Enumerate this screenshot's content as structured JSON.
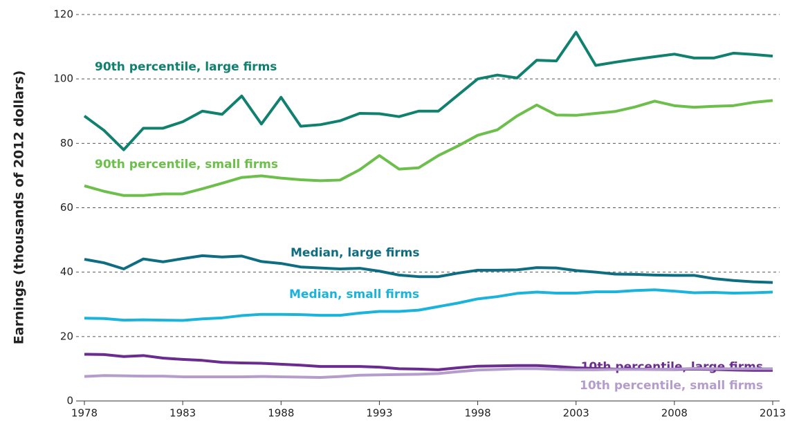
{
  "chart_data": {
    "type": "line",
    "ylabel": "Earnings (thousands of 2012 dollars)",
    "x": [
      1978,
      1979,
      1980,
      1981,
      1982,
      1983,
      1984,
      1985,
      1986,
      1987,
      1988,
      1989,
      1990,
      1991,
      1992,
      1993,
      1994,
      1995,
      1996,
      1997,
      1998,
      1999,
      2000,
      2001,
      2002,
      2003,
      2004,
      2005,
      2006,
      2007,
      2008,
      2009,
      2010,
      2011,
      2012,
      2013
    ],
    "xlim": [
      1978,
      2013
    ],
    "xticks": [
      1978,
      1983,
      1988,
      1993,
      1998,
      2003,
      2008,
      2013
    ],
    "ylim": [
      0,
      120
    ],
    "yticks": [
      0,
      20,
      40,
      60,
      80,
      100,
      120
    ],
    "grid": true,
    "series": [
      {
        "name": "90th percentile, large firms",
        "color": "#10806f",
        "values": [
          88.5,
          84,
          78,
          84.7,
          84.7,
          86.7,
          90,
          89,
          94.7,
          86,
          94.3,
          85.3,
          85.8,
          87,
          89.3,
          89.2,
          88.3,
          90,
          90,
          95,
          100,
          101.2,
          100.3,
          105.8,
          105.6,
          114.5,
          104.2,
          105.2,
          106.1,
          106.9,
          107.7,
          106.5,
          106.5,
          108,
          107.6,
          107.1
        ]
      },
      {
        "name": "90th percentile, small firms",
        "color": "#6cbf4a",
        "values": [
          66.8,
          65.1,
          63.8,
          63.8,
          64.3,
          64.3,
          65.9,
          67.6,
          69.4,
          69.9,
          69.2,
          68.7,
          68.4,
          68.6,
          71.8,
          76.2,
          72,
          72.4,
          76.2,
          79.2,
          82.5,
          84.2,
          88.5,
          91.9,
          88.8,
          88.7,
          89.3,
          89.9,
          91.3,
          93.1,
          91.7,
          91.2,
          91.5,
          91.7,
          92.7,
          93.3
        ]
      },
      {
        "name": "Median, large firms",
        "color": "#0f6d82",
        "values": [
          44,
          42.9,
          41,
          44.1,
          43.2,
          44.2,
          45.1,
          44.7,
          45,
          43.3,
          42.7,
          41.6,
          41.3,
          41,
          41.2,
          40.3,
          39.1,
          38.6,
          38.6,
          39.7,
          40.6,
          40.6,
          40.7,
          41.4,
          41.3,
          40.5,
          40,
          39.4,
          39.3,
          39.1,
          39,
          39,
          38,
          37.4,
          37,
          36.8
        ]
      },
      {
        "name": "Median, small firms",
        "color": "#1ab3dc",
        "values": [
          25.7,
          25.6,
          25.1,
          25.2,
          25.1,
          25,
          25.5,
          25.8,
          26.5,
          26.9,
          26.9,
          26.8,
          26.6,
          26.6,
          27.3,
          27.8,
          27.8,
          28.2,
          29.3,
          30.4,
          31.7,
          32.4,
          33.4,
          33.8,
          33.5,
          33.5,
          33.9,
          33.9,
          34.3,
          34.5,
          34.1,
          33.6,
          33.7,
          33.5,
          33.6,
          33.8
        ]
      },
      {
        "name": "10th percentile, large firms",
        "color": "#6a2c8e",
        "values": [
          14.5,
          14.4,
          13.8,
          14.1,
          13.3,
          12.9,
          12.6,
          12,
          11.8,
          11.7,
          11.4,
          11.1,
          10.7,
          10.7,
          10.7,
          10.5,
          10,
          9.9,
          9.7,
          10.3,
          10.8,
          10.9,
          11,
          11,
          10.7,
          10.3,
          10.1,
          9.9,
          9.9,
          9.8,
          9.8,
          9.9,
          9.8,
          9.6,
          9.5,
          9.5
        ]
      },
      {
        "name": "10th percentile, small firms",
        "color": "#b49ccc",
        "values": [
          7.6,
          7.9,
          7.8,
          7.7,
          7.7,
          7.5,
          7.5,
          7.5,
          7.5,
          7.6,
          7.5,
          7.4,
          7.3,
          7.6,
          8,
          8.1,
          8.2,
          8.3,
          8.5,
          9.1,
          9.6,
          9.8,
          10,
          10,
          9.8,
          9.7,
          9.7,
          9.8,
          9.8,
          9.8,
          9.9,
          10.1,
          10,
          10,
          10,
          10
        ]
      }
    ]
  }
}
